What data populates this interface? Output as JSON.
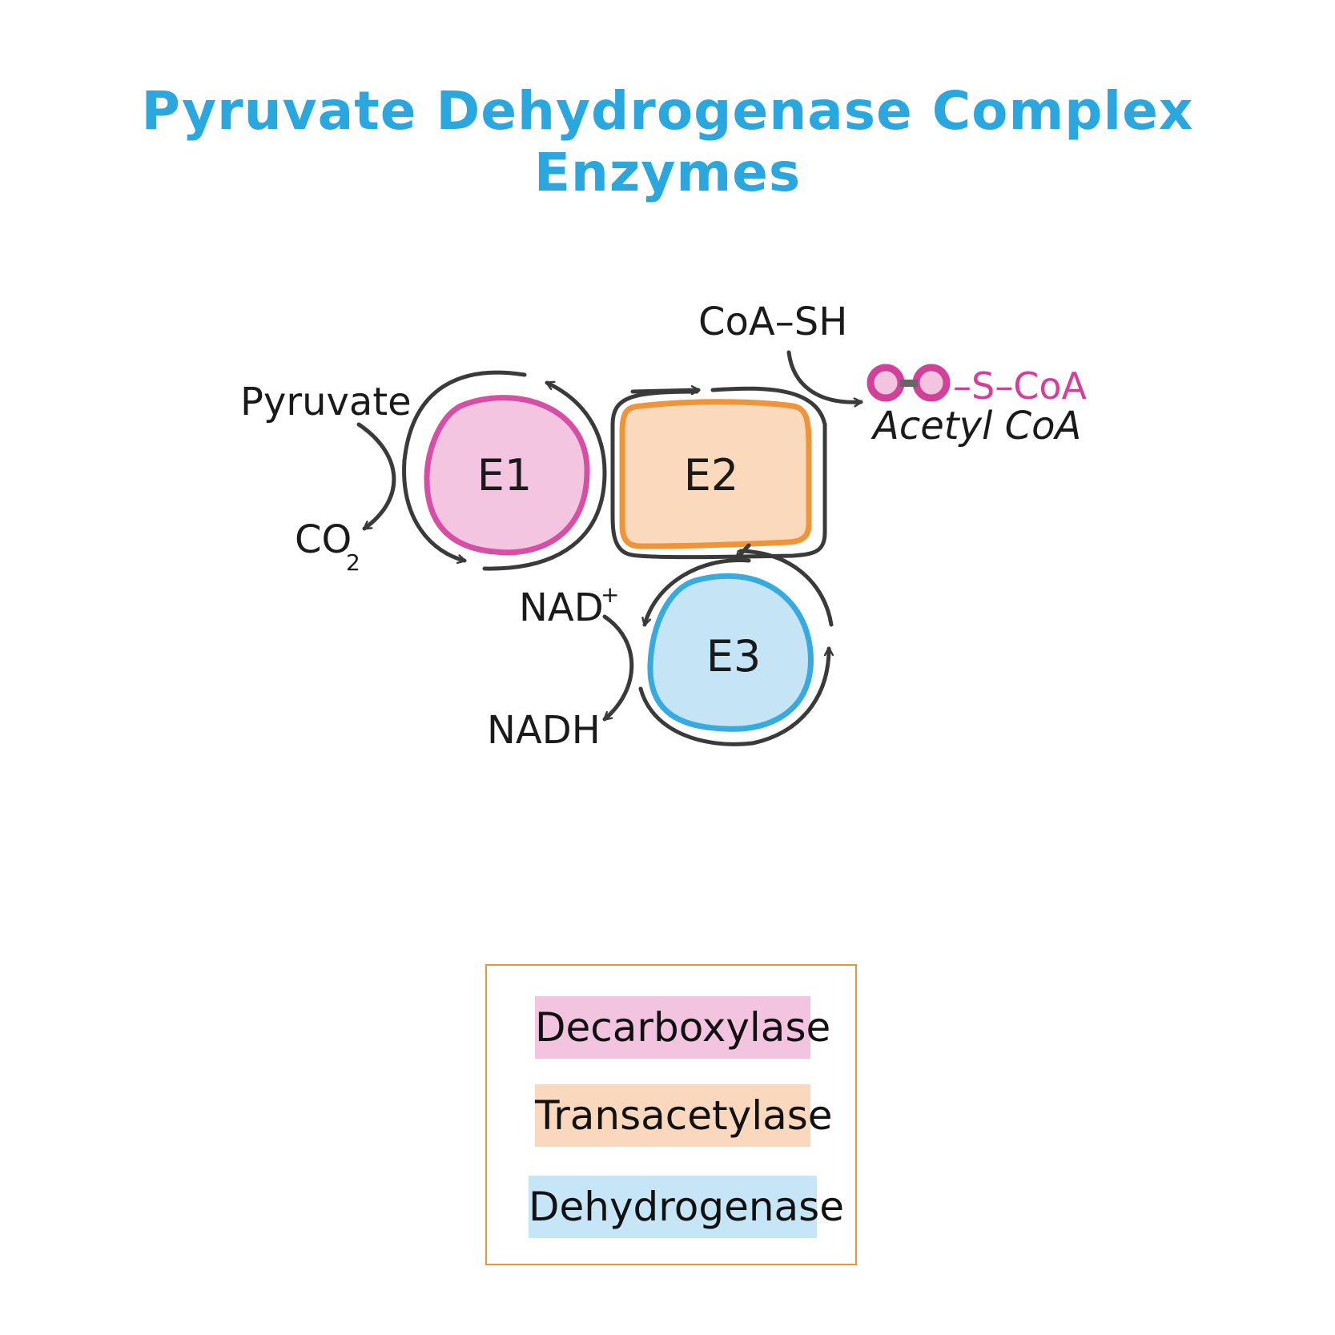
{
  "title": "Pyruvate Dehydrogenase Complex Enzymes",
  "nodes": {
    "e1": "E1",
    "e2": "E2",
    "e3": "E3"
  },
  "labels": {
    "pyruvate": "Pyruvate",
    "co2": "CO",
    "co2_sub": "2",
    "coa_sh": "CoA–SH",
    "s_coa": "–S–CoA",
    "acetyl_coa": "Acetyl CoA",
    "nad_plus": "NAD",
    "nad_sup": "+",
    "nadh": "NADH"
  },
  "legend": {
    "items": [
      {
        "label": "Decarboxylase",
        "color": "#f2c4e0"
      },
      {
        "label": "Transacetylase",
        "color": "#f9d8be"
      },
      {
        "label": "Dehydrogenase",
        "color": "#c6e5f6"
      }
    ]
  },
  "colors": {
    "title": "#2aa7df",
    "e1_fill": "#f3c5e0",
    "e1_stroke": "#d44fa5",
    "e2_fill": "#fad9bc",
    "e2_stroke": "#f0943a",
    "e3_fill": "#c5e5f6",
    "e3_stroke": "#37abe0",
    "arrow": "#3a3a3a",
    "acetyl": "#d1419a"
  }
}
